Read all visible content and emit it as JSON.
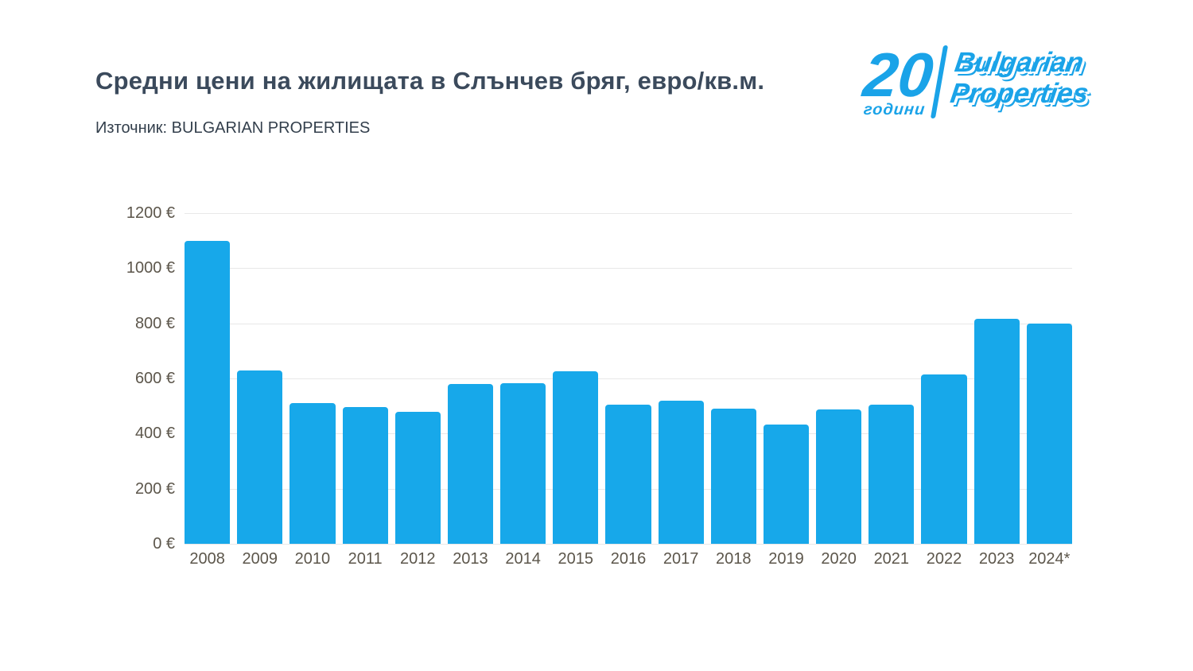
{
  "header": {
    "title": "Средни цени на жилищата в Слънчев бряг, евро/кв.м.",
    "source": "Източник: BULGARIAN PROPERTIES"
  },
  "logo": {
    "number": "20",
    "years_label": "години",
    "brand_line1": "Bulgarian",
    "brand_line2": "Properties",
    "color": "#1aa3e8"
  },
  "chart_data": {
    "type": "bar",
    "title": "Средни цени на жилищата в Слънчев бряг, евро/кв.м.",
    "categories": [
      "2008",
      "2009",
      "2010",
      "2011",
      "2012",
      "2013",
      "2014",
      "2015",
      "2016",
      "2017",
      "2018",
      "2019",
      "2020",
      "2021",
      "2022",
      "2023",
      "2024*"
    ],
    "values": [
      1100,
      630,
      510,
      495,
      478,
      580,
      582,
      625,
      505,
      520,
      490,
      433,
      488,
      505,
      615,
      815,
      800
    ],
    "xlabel": "",
    "ylabel": "",
    "ylim": [
      0,
      1200
    ],
    "ytick_step": 200,
    "ytick_suffix": " €",
    "bar_color": "#17a8ea",
    "grid": true,
    "legend": "none"
  }
}
